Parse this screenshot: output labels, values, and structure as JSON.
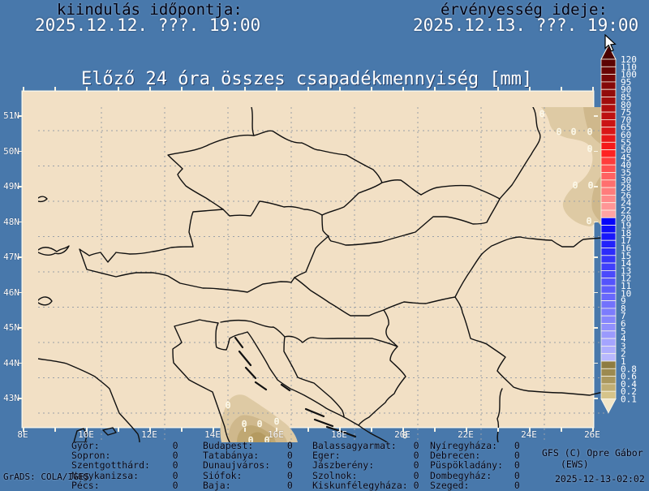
{
  "header": {
    "start_label": "kiindulás időpontja:",
    "start_value": "2025.12.12. ???. 19:00",
    "valid_label": "érvényesség ideje:",
    "valid_value": "2025.12.13. ???. 19:00"
  },
  "title": "Előző 24 óra összes csapadékmennyiség [mm]",
  "map": {
    "lat_labels": [
      "51N",
      "50N",
      "49N",
      "48N",
      "47N",
      "46N",
      "45N",
      "44N",
      "43N"
    ],
    "lon_labels": [
      "8E",
      "10E",
      "12E",
      "14E",
      "16E",
      "18E",
      "20E",
      "22E",
      "24E",
      "26E"
    ],
    "zero_label": "0",
    "zero_markers": [
      [
        621,
        8
      ],
      [
        642,
        30
      ],
      [
        660,
        30
      ],
      [
        680,
        30
      ],
      [
        680,
        51
      ],
      [
        662,
        96
      ],
      [
        681,
        96
      ],
      [
        679,
        140
      ],
      [
        234,
        367
      ],
      [
        254,
        390
      ],
      [
        273,
        390
      ],
      [
        294,
        387
      ],
      [
        262,
        410
      ],
      [
        282,
        410
      ],
      [
        452,
        404
      ]
    ]
  },
  "legend": {
    "title_unit": "mm",
    "labels": [
      "120",
      "110",
      "100",
      "95",
      "90",
      "85",
      "80",
      "75",
      "70",
      "65",
      "60",
      "55",
      "50",
      "45",
      "40",
      "35",
      "30",
      "28",
      "26",
      "24",
      "22",
      "20",
      "19",
      "18",
      "17",
      "16",
      "15",
      "14",
      "13",
      "12",
      "11",
      "10",
      "9",
      "8",
      "7",
      "6",
      "5",
      "4",
      "3",
      "2",
      "1",
      "0.8",
      "0.6",
      "0.4",
      "0.2",
      "0.1"
    ],
    "segment_colors": [
      "#5c0303",
      "#690505",
      "#770707",
      "#850909",
      "#930b0b",
      "#a10d0d",
      "#af0f0f",
      "#bd1111",
      "#cb1414",
      "#d91616",
      "#e71818",
      "#f51a1a",
      "#ff2222",
      "#ff3c3c",
      "#ff5050",
      "#ff6262",
      "#ff6f6f",
      "#ff7c7c",
      "#ff8989",
      "#ff9696",
      "#ffa3a3",
      "#0404fa",
      "#0e0efa",
      "#1818fa",
      "#2222fb",
      "#2c2cfb",
      "#3636fb",
      "#4040fb",
      "#4a4afc",
      "#5454fc",
      "#5e5efc",
      "#6868fc",
      "#7272fc",
      "#7c7cfd",
      "#8686fd",
      "#9090fd",
      "#9a9afd",
      "#a4a4fe",
      "#aeaefe",
      "#b8b8fe",
      "#8e7c42",
      "#9c8a50",
      "#aa985e",
      "#c0ae74",
      "#d6c48a"
    ],
    "above_color": "#4a0101",
    "below_color": "#f2e6c8"
  },
  "stations": {
    "columns": [
      {
        "items": [
          {
            "name": "Győr:",
            "value": "0"
          },
          {
            "name": "Sopron:",
            "value": "0"
          },
          {
            "name": "Szentgotthárd:",
            "value": "0"
          },
          {
            "name": "Nagykanizsa:",
            "value": "0"
          },
          {
            "name": "Pécs:",
            "value": "0"
          }
        ]
      },
      {
        "items": [
          {
            "name": "Budapest:",
            "value": "0"
          },
          {
            "name": "Tatabánya:",
            "value": "0"
          },
          {
            "name": "Dunaujváros:",
            "value": "0"
          },
          {
            "name": "Siófok:",
            "value": "0"
          },
          {
            "name": "Baja:",
            "value": "0"
          }
        ]
      },
      {
        "items": [
          {
            "name": "Balassagyarmat:",
            "value": "0"
          },
          {
            "name": "Eger:",
            "value": "0"
          },
          {
            "name": "Jászberény:",
            "value": "0"
          },
          {
            "name": "Szolnok:",
            "value": "0"
          },
          {
            "name": "Kiskunfélegyháza:",
            "value": "0"
          }
        ]
      },
      {
        "items": [
          {
            "name": "Nyíregyháza:",
            "value": "0"
          },
          {
            "name": "Debrecen:",
            "value": "0"
          },
          {
            "name": "Püspökladány:",
            "value": "0"
          },
          {
            "name": "Dombegyház:",
            "value": "0"
          },
          {
            "name": "Szeged:",
            "value": "0"
          }
        ]
      }
    ]
  },
  "footer": {
    "grads_stamp": "GrADS: COLA/IGES",
    "credit_line1": "GFS (C) Opre Gábor",
    "credit_line2": "(EWS)",
    "timestamp": "2025-12-13-02:02"
  },
  "colors": {
    "background": "#4878ab",
    "map_background": "#f2e0c5",
    "precip_light": "#decaa4",
    "precip_mid": "#cfb88c",
    "precip_dark": "#c0a873",
    "precip_darkest": "#b49a60",
    "border_line": "#101010",
    "grid_line": "#9aa0a8",
    "frame": "#f8f4e6"
  }
}
